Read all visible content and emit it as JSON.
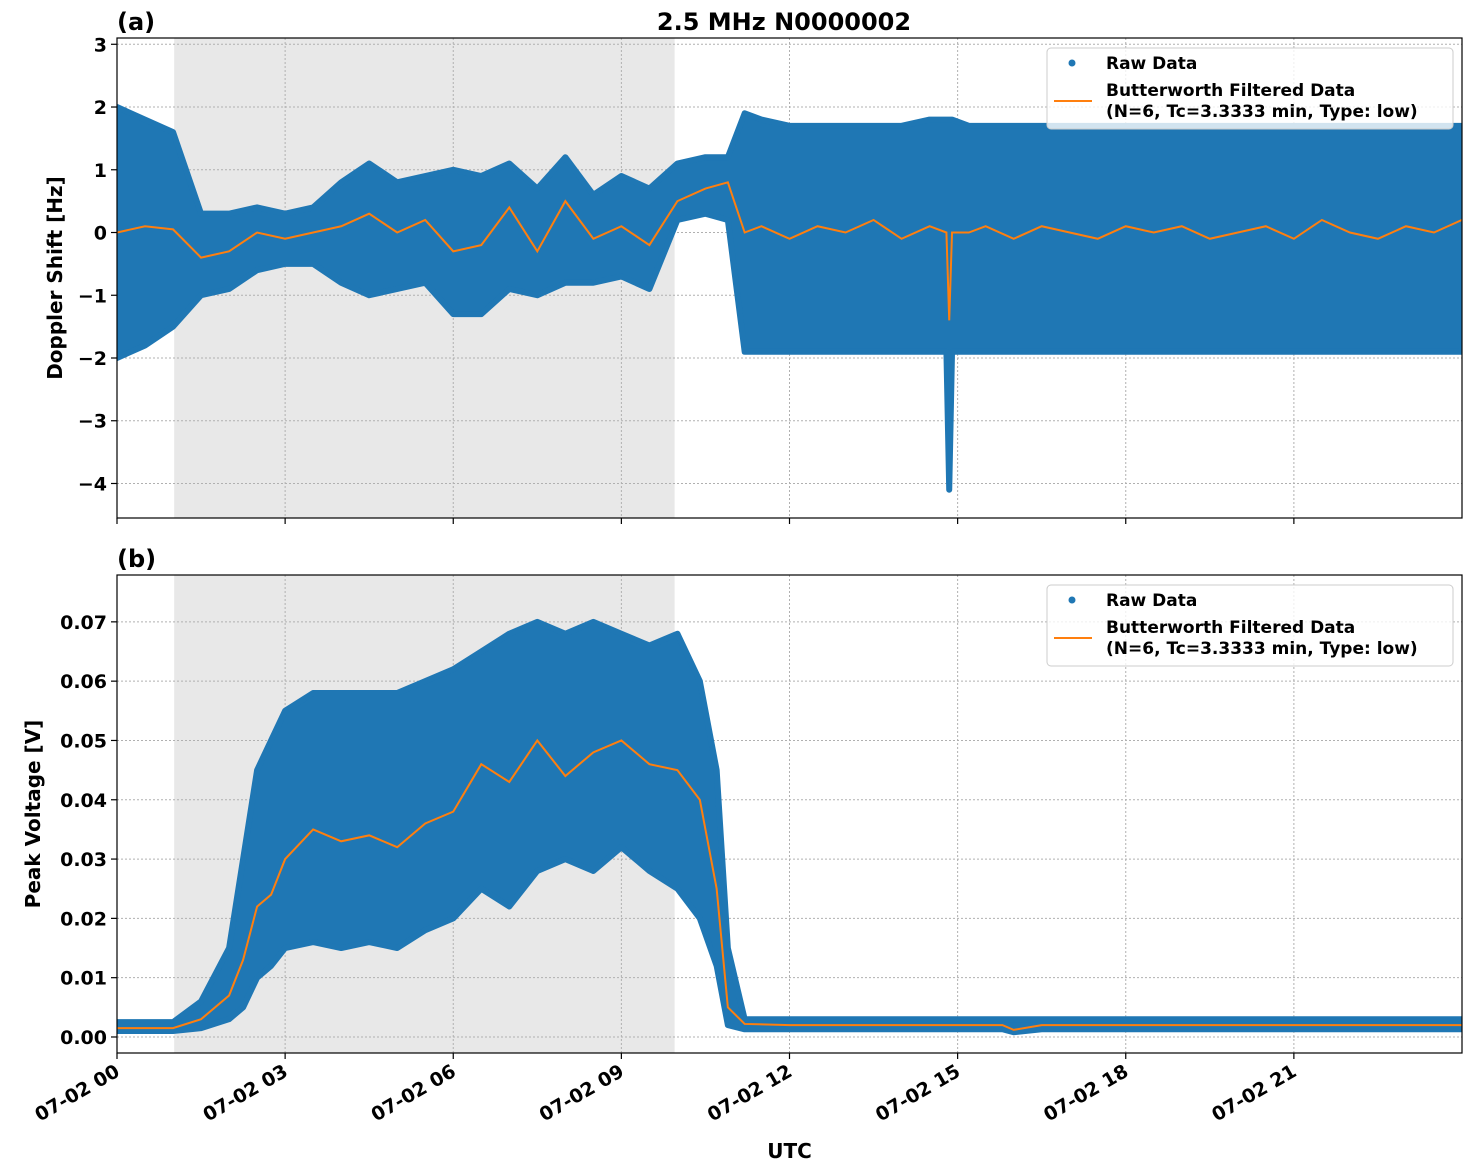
{
  "title": "2.5 MHz N0000002",
  "colors": {
    "raw": "#1f77b4",
    "filtered": "#ff7f0e",
    "shade": "#e8e8e8"
  },
  "chart_data": [
    {
      "panel_label": "(a)",
      "type": "scatter",
      "ylabel": "Doppler Shift [Hz]",
      "xlabel": "",
      "xlim_hours": [
        0,
        24
      ],
      "ylim": [
        -4.55,
        3.1
      ],
      "yticks": [
        3,
        2,
        1,
        0,
        -1,
        -2,
        -3,
        -4
      ],
      "ytick_labels": [
        "3",
        "2",
        "1",
        "0",
        "−1",
        "−2",
        "−3",
        "−4"
      ],
      "grid": true,
      "legend_placement": "upper right",
      "shaded_region_hours": [
        1.02,
        9.95
      ],
      "series": [
        {
          "name": "Raw Data",
          "kind": "scatter-envelope",
          "x": [
            0,
            0.5,
            1,
            1.5,
            2,
            2.5,
            3,
            3.5,
            4,
            4.5,
            5,
            5.5,
            6,
            6.5,
            7,
            7.5,
            8,
            8.5,
            9,
            9.5,
            10,
            10.5,
            10.9,
            11.2,
            11.5,
            12,
            12.5,
            13,
            13.5,
            14,
            14.5,
            14.8,
            14.85,
            14.9,
            15.2,
            15.5,
            16,
            16.5,
            17,
            17.5,
            18,
            18.5,
            19,
            19.5,
            20,
            20.5,
            21,
            21.5,
            22,
            22.5,
            23,
            23.5,
            24
          ],
          "upper": [
            2.0,
            1.8,
            1.6,
            0.3,
            0.3,
            0.4,
            0.3,
            0.4,
            0.8,
            1.1,
            0.8,
            0.9,
            1.0,
            0.9,
            1.1,
            0.7,
            1.2,
            0.6,
            0.9,
            0.7,
            1.1,
            1.2,
            1.2,
            1.9,
            1.8,
            1.7,
            1.7,
            1.7,
            1.7,
            1.7,
            1.8,
            1.8,
            1.8,
            1.8,
            1.7,
            1.7,
            1.7,
            1.7,
            1.7,
            1.7,
            1.7,
            1.7,
            1.7,
            1.7,
            1.7,
            1.7,
            1.7,
            1.7,
            1.7,
            1.7,
            1.7,
            1.7,
            1.7
          ],
          "lower": [
            -2.0,
            -1.8,
            -1.5,
            -1.0,
            -0.9,
            -0.6,
            -0.5,
            -0.5,
            -0.8,
            -1.0,
            -0.9,
            -0.8,
            -1.3,
            -1.3,
            -0.9,
            -1.0,
            -0.8,
            -0.8,
            -0.7,
            -0.9,
            0.2,
            0.3,
            0.2,
            -1.9,
            -1.9,
            -1.9,
            -1.9,
            -1.9,
            -1.9,
            -1.9,
            -1.9,
            -1.9,
            -4.1,
            -1.9,
            -1.9,
            -1.9,
            -1.9,
            -1.9,
            -1.9,
            -1.9,
            -1.9,
            -1.9,
            -1.9,
            -1.9,
            -1.9,
            -1.9,
            -1.9,
            -1.9,
            -1.9,
            -1.9,
            -1.9,
            -1.9,
            -1.9
          ]
        },
        {
          "name": "Butterworth Filtered Data\n(N=6, Tc=3.3333 min, Type: low)",
          "kind": "line",
          "x": [
            0,
            0.5,
            1,
            1.5,
            2,
            2.5,
            3,
            3.5,
            4,
            4.5,
            5,
            5.5,
            6,
            6.5,
            7,
            7.5,
            8,
            8.5,
            9,
            9.5,
            10,
            10.5,
            10.9,
            11.2,
            11.5,
            12,
            12.5,
            13,
            13.5,
            14,
            14.5,
            14.8,
            14.85,
            14.9,
            15.2,
            15.5,
            16,
            16.5,
            17,
            17.5,
            18,
            18.5,
            19,
            19.5,
            20,
            20.5,
            21,
            21.5,
            22,
            22.5,
            23,
            23.5,
            24
          ],
          "y": [
            0.0,
            0.1,
            0.05,
            -0.4,
            -0.3,
            0.0,
            -0.1,
            0.0,
            0.1,
            0.3,
            0.0,
            0.2,
            -0.3,
            -0.2,
            0.4,
            -0.3,
            0.5,
            -0.1,
            0.1,
            -0.2,
            0.5,
            0.7,
            0.8,
            0.0,
            0.1,
            -0.1,
            0.1,
            0.0,
            0.2,
            -0.1,
            0.1,
            0.0,
            -1.4,
            0.0,
            0.0,
            0.1,
            -0.1,
            0.1,
            0.0,
            -0.1,
            0.1,
            0.0,
            0.1,
            -0.1,
            0.0,
            0.1,
            -0.1,
            0.2,
            0.0,
            -0.1,
            0.1,
            0.0,
            0.2
          ]
        }
      ],
      "legend_entries": [
        "Raw Data",
        "Butterworth Filtered Data",
        "(N=6, Tc=3.3333 min, Type: low)"
      ]
    },
    {
      "panel_label": "(b)",
      "type": "scatter",
      "ylabel": "Peak Voltage [V]",
      "xlabel": "UTC",
      "xlim_hours": [
        0,
        24
      ],
      "ylim": [
        -0.0027,
        0.0779
      ],
      "yticks": [
        0.0,
        0.01,
        0.02,
        0.03,
        0.04,
        0.05,
        0.06,
        0.07
      ],
      "ytick_labels": [
        "0.00",
        "0.01",
        "0.02",
        "0.03",
        "0.04",
        "0.05",
        "0.06",
        "0.07"
      ],
      "xticks_hours": [
        0,
        3,
        6,
        9,
        12,
        15,
        18,
        21
      ],
      "xtick_labels": [
        "07-02 00",
        "07-02 03",
        "07-02 06",
        "07-02 09",
        "07-02 12",
        "07-02 15",
        "07-02 18",
        "07-02 21"
      ],
      "grid": true,
      "legend_placement": "upper right",
      "shaded_region_hours": [
        1.02,
        9.95
      ],
      "series": [
        {
          "name": "Raw Data",
          "kind": "scatter-envelope",
          "x": [
            0,
            0.5,
            1,
            1.5,
            2,
            2.25,
            2.5,
            2.75,
            3,
            3.5,
            4,
            4.5,
            5,
            5.5,
            6,
            6.5,
            7,
            7.5,
            8,
            8.5,
            9,
            9.5,
            10,
            10.4,
            10.7,
            10.9,
            11.2,
            12,
            15,
            15.8,
            16,
            16.5,
            20,
            24
          ],
          "upper": [
            0.0025,
            0.0025,
            0.0025,
            0.006,
            0.015,
            0.03,
            0.045,
            0.05,
            0.055,
            0.058,
            0.058,
            0.058,
            0.058,
            0.06,
            0.062,
            0.065,
            0.068,
            0.07,
            0.068,
            0.07,
            0.068,
            0.066,
            0.068,
            0.06,
            0.045,
            0.015,
            0.003,
            0.003,
            0.003,
            0.003,
            0.003,
            0.003,
            0.003,
            0.003
          ],
          "lower": [
            0.001,
            0.001,
            0.001,
            0.0015,
            0.003,
            0.005,
            0.01,
            0.012,
            0.015,
            0.016,
            0.015,
            0.016,
            0.015,
            0.018,
            0.02,
            0.025,
            0.022,
            0.028,
            0.03,
            0.028,
            0.032,
            0.028,
            0.025,
            0.02,
            0.012,
            0.002,
            0.0013,
            0.0013,
            0.0013,
            0.0013,
            0.0008,
            0.0013,
            0.0013,
            0.0013
          ]
        },
        {
          "name": "Butterworth Filtered Data\n(N=6, Tc=3.3333 min, Type: low)",
          "kind": "line",
          "x": [
            0,
            0.5,
            1,
            1.5,
            2,
            2.25,
            2.5,
            2.75,
            3,
            3.5,
            4,
            4.5,
            5,
            5.5,
            6,
            6.5,
            7,
            7.5,
            8,
            8.5,
            9,
            9.5,
            10,
            10.4,
            10.7,
            10.9,
            11.2,
            12,
            15,
            15.8,
            16,
            16.5,
            20,
            24
          ],
          "y": [
            0.0015,
            0.0015,
            0.0015,
            0.003,
            0.007,
            0.013,
            0.022,
            0.024,
            0.03,
            0.035,
            0.033,
            0.034,
            0.032,
            0.036,
            0.038,
            0.046,
            0.043,
            0.05,
            0.044,
            0.048,
            0.05,
            0.046,
            0.045,
            0.04,
            0.025,
            0.005,
            0.0022,
            0.002,
            0.002,
            0.002,
            0.0012,
            0.002,
            0.002,
            0.002
          ]
        }
      ],
      "legend_entries": [
        "Raw Data",
        "Butterworth Filtered Data",
        "(N=6, Tc=3.3333 min, Type: low)"
      ]
    }
  ]
}
